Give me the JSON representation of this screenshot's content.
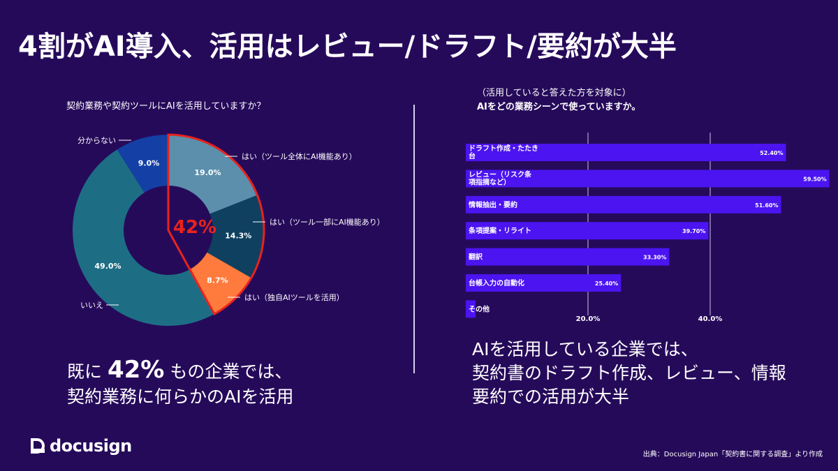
{
  "title": "4割がAI導入、活用はレビュー/ドラフト/要約が大半",
  "donut_question": "契約業務や契約ツールにAIを活用していますか？",
  "bar_question_lines": [
    "（活用していると答えた方を対象に）",
    "AIをどの業務シーンで使っていますか。"
  ],
  "summary_left": {
    "prefix": "既に",
    "highlight": "42%",
    "suffix": "もの企業では、",
    "line2": "契約業務に何らかのAIを活用"
  },
  "summary_right_lines": [
    "AIを活用している企業では、",
    "契約書のドラフト作成、レビュー、情報",
    "要約での活用が大半"
  ],
  "logo": {
    "text": "docusign",
    "icon": "docusign-logo-icon"
  },
  "source": "出典：Docusign Japan「契約書に関する調査」より作成",
  "colors": {
    "background": "#260a5a",
    "bar": "#4b14f0",
    "highlight": "#e8231e"
  },
  "chart_data": [
    {
      "type": "pie",
      "title": "契約業務や契約ツールにAIを活用していますか？",
      "categories": [
        "はい（ツール全体にAI機能あり）",
        "はい（ツール一部にAI機能あり）",
        "はい（独自AIツールを活用）",
        "いいえ",
        "分からない"
      ],
      "values": [
        19.0,
        14.3,
        8.7,
        49.0,
        9.0
      ],
      "value_labels": [
        "19.0%",
        "14.3%",
        "8.7%",
        "49.0%",
        "9.0%"
      ],
      "colors": [
        "#5b8fab",
        "#0f4060",
        "#ff7a3d",
        "#1d6e85",
        "#1440a6"
      ],
      "highlight_label": "42%",
      "highlight_slices": [
        0,
        1,
        2
      ]
    },
    {
      "type": "bar",
      "orientation": "horizontal",
      "title": "（活用していると答えた方を対象に） AIをどの業務シーンで使っていますか。",
      "categories": [
        [
          "ドラフト作成・たたき",
          "台"
        ],
        [
          "レビュー（リスク条",
          "項指摘など）"
        ],
        [
          "情報抽出・要約"
        ],
        [
          "条項提案・リライト"
        ],
        [
          "翻訳"
        ],
        [
          "台帳入力の自動化"
        ],
        [
          "その他"
        ]
      ],
      "values": [
        52.4,
        59.5,
        51.6,
        39.7,
        33.3,
        25.4,
        1.6
      ],
      "value_labels": [
        "52.40%",
        "59.50%",
        "51.60%",
        "39.70%",
        "33.30%",
        "25.40%",
        ""
      ],
      "x_ticks": [
        "20.0%",
        "40.0%"
      ],
      "tick_values": [
        20,
        40
      ],
      "xlim": [
        0,
        60
      ]
    }
  ]
}
